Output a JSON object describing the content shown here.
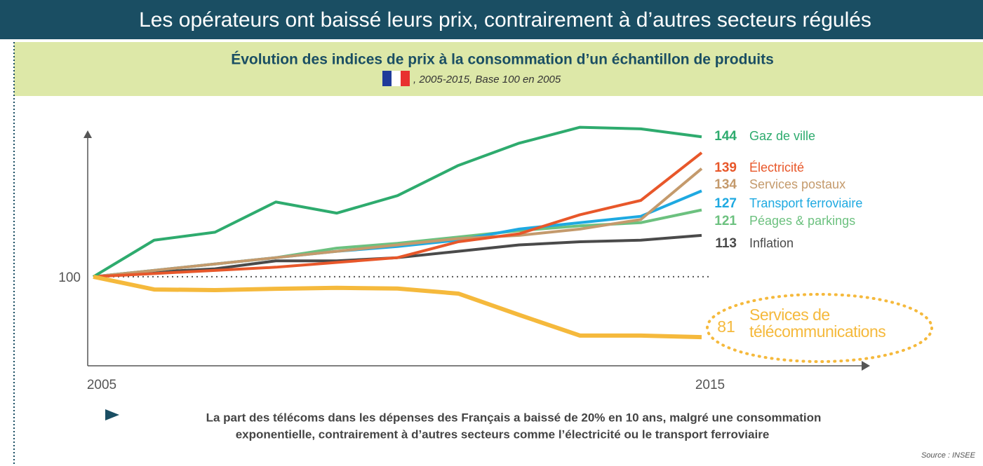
{
  "chart_data": {
    "type": "line",
    "title": "Les opérateurs ont baissé leurs prix, contrairement à d’autres secteurs régulés",
    "subtitle": "Évolution des indices de prix à la consommation d’un échantillon de produits",
    "subtitle_detail": ", 2005-2015, Base 100 en 2005",
    "x": [
      2005,
      2006,
      2007,
      2008,
      2009,
      2010,
      2011,
      2012,
      2013,
      2014,
      2015
    ],
    "xlim": [
      2005,
      2015
    ],
    "xticks": [
      2005,
      2015
    ],
    "ylim": [
      72,
      150
    ],
    "yticks": [
      100
    ],
    "series": [
      {
        "name": "Gaz de ville",
        "color": "#2eab6e",
        "values": [
          100,
          111.5,
          114,
          123.5,
          120,
          125.5,
          135,
          142,
          147,
          146.5,
          144
        ]
      },
      {
        "name": "Électricité",
        "color": "#e8572a",
        "values": [
          100,
          101,
          102,
          103,
          104.5,
          106,
          111,
          113.5,
          119.5,
          124,
          139
        ]
      },
      {
        "name": "Services postaux",
        "color": "#c49a6c",
        "values": [
          100,
          102,
          104,
          106,
          108,
          110,
          112,
          113,
          115,
          118,
          134
        ]
      },
      {
        "name": "Transport ferroviaire",
        "color": "#1ea9e1",
        "values": [
          100,
          102,
          104,
          106,
          108,
          109.5,
          111.5,
          115,
          117,
          119,
          127
        ]
      },
      {
        "name": "Péages & parkings",
        "color": "#6cc17f",
        "values": [
          100,
          102,
          104,
          106,
          109,
          110.5,
          112.5,
          114.5,
          116,
          117,
          121
        ]
      },
      {
        "name": "Inflation",
        "color": "#4a4a4a",
        "values": [
          100,
          101.5,
          102.5,
          105,
          105,
          106,
          108,
          110,
          111,
          111.5,
          113
        ]
      },
      {
        "name": "Services de télécommunications",
        "color": "#f5b93c",
        "values": [
          100,
          96,
          95.8,
          96.2,
          96.5,
          96.3,
          94.7,
          88,
          81.5,
          81.5,
          81
        ]
      }
    ],
    "note": [
      "La part des télécoms dans les dépenses des Français a baissé de 20% en 10 ans, malgré une consommation",
      "exponentielle, contrairement à d’autres secteurs comme l’électricité ou le transport ferroviaire"
    ],
    "source": "Source :  INSEE"
  }
}
